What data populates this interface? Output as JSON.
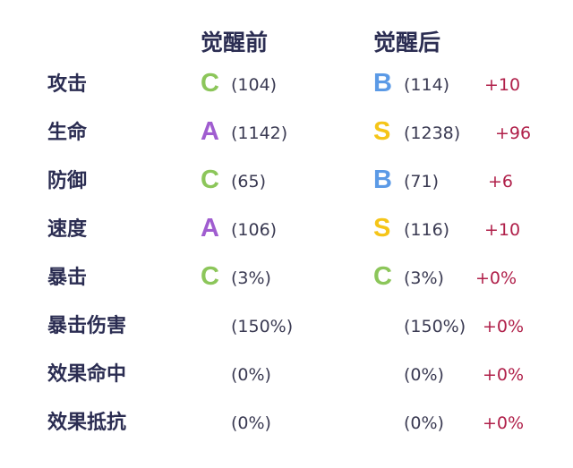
{
  "headers": {
    "before": "觉醒前",
    "after": "觉醒后"
  },
  "colors": {
    "C": "#8cc65a",
    "B": "#5b9ae6",
    "A": "#a05dd0",
    "S": "#f5c518",
    "diff": "#b0204a",
    "text": "#2b2d52"
  },
  "rows": [
    {
      "label": "攻击",
      "before_grade": "C",
      "before_value": "(104)",
      "after_grade": "B",
      "after_value": "(114)",
      "diff": "+10"
    },
    {
      "label": "生命",
      "before_grade": "A",
      "before_value": "(1142)",
      "after_grade": "S",
      "after_value": "(1238)",
      "diff": "+96"
    },
    {
      "label": "防御",
      "before_grade": "C",
      "before_value": "(65)",
      "after_grade": "B",
      "after_value": "(71)",
      "diff": "+6"
    },
    {
      "label": "速度",
      "before_grade": "A",
      "before_value": "(106)",
      "after_grade": "S",
      "after_value": "(116)",
      "diff": "+10"
    },
    {
      "label": "暴击",
      "before_grade": "C",
      "before_value": "(3%)",
      "after_grade": "C",
      "after_value": "(3%)",
      "diff": "+0%"
    },
    {
      "label": "暴击伤害",
      "before_grade": "",
      "before_value": "(150%)",
      "after_grade": "",
      "after_value": "(150%)",
      "diff": "+0%"
    },
    {
      "label": "效果命中",
      "before_grade": "",
      "before_value": "(0%)",
      "after_grade": "",
      "after_value": "(0%)",
      "diff": "+0%"
    },
    {
      "label": "效果抵抗",
      "before_grade": "",
      "before_value": "(0%)",
      "after_grade": "",
      "after_value": "(0%)",
      "diff": "+0%"
    }
  ]
}
